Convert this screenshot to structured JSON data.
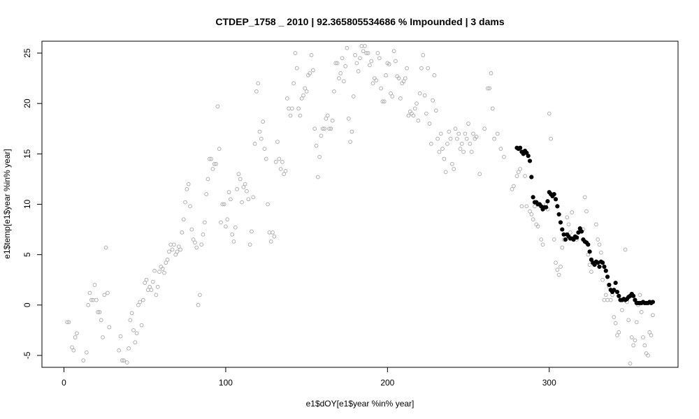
{
  "chart_data": {
    "type": "scatter",
    "title": "CTDEP_1758 _ 2010   |   92.365805534686  % Impounded |  3  dams",
    "xlabel": "e1$dOY[e1$year %in% year]",
    "ylabel": "e1$temp[e1$year %in% year]",
    "xlim": [
      -13.6,
      379.6
    ],
    "ylim": [
      -6.18,
      26.18
    ],
    "xticks": [
      0,
      100,
      200,
      300
    ],
    "yticks": [
      -5,
      0,
      5,
      10,
      15,
      20,
      25
    ],
    "grid": false,
    "series": [
      {
        "color": "#b0b0b0",
        "filled": false,
        "x": [
          2,
          3,
          5,
          6,
          7,
          8,
          12,
          14,
          15,
          16,
          17,
          18,
          19,
          20,
          21,
          22,
          23,
          24,
          25,
          26,
          27,
          28,
          34,
          35,
          36,
          37,
          39,
          40,
          41,
          42,
          43,
          44,
          45,
          46,
          47,
          48,
          49,
          50,
          51,
          52,
          53,
          54,
          55,
          56,
          57,
          58,
          59,
          60,
          61,
          62,
          63,
          64,
          65,
          66,
          67,
          68,
          69,
          70,
          71,
          72,
          73,
          74,
          75,
          76,
          77,
          78,
          79,
          80,
          81,
          82,
          83,
          84,
          85,
          86,
          87,
          88,
          89,
          90,
          91,
          92,
          93,
          94,
          95,
          96,
          97,
          98,
          99,
          100,
          101,
          102,
          103,
          104,
          105,
          106,
          107,
          108,
          109,
          110,
          111,
          112,
          113,
          114,
          115,
          116,
          117,
          118,
          119,
          120,
          121,
          122,
          123,
          124,
          125,
          126,
          127,
          128,
          129,
          130,
          131,
          132,
          133,
          134,
          135,
          136,
          137,
          138,
          139,
          140,
          141,
          142,
          143,
          144,
          145,
          146,
          147,
          148,
          149,
          150,
          151,
          152,
          153,
          154,
          155,
          156,
          157,
          158,
          159,
          160,
          161,
          162,
          163,
          164,
          165,
          166,
          167,
          168,
          169,
          170,
          171,
          172,
          173,
          174,
          175,
          176,
          177,
          178,
          179,
          180,
          181,
          182,
          183,
          184,
          185,
          186,
          187,
          188,
          189,
          190,
          191,
          192,
          193,
          194,
          195,
          196,
          197,
          198,
          199,
          200,
          201,
          202,
          203,
          204,
          205,
          206,
          207,
          208,
          209,
          210,
          211,
          212,
          213,
          214,
          215,
          216,
          217,
          218,
          219,
          220,
          221,
          222,
          223,
          224,
          225,
          226,
          227,
          228,
          229,
          230,
          231,
          232,
          233,
          234,
          235,
          236,
          237,
          238,
          239,
          240,
          241,
          242,
          243,
          244,
          245,
          246,
          247,
          248,
          249,
          250,
          251,
          252,
          253,
          254,
          255,
          257,
          260,
          262,
          263,
          264,
          265,
          266,
          268,
          270,
          272,
          277,
          278,
          280,
          281,
          282,
          283,
          285,
          286,
          288,
          289,
          290,
          291,
          292,
          293,
          295,
          296,
          298,
          299,
          300,
          301,
          303,
          304,
          305,
          306,
          307,
          308,
          309,
          311,
          312,
          313,
          314,
          316,
          317,
          319,
          321,
          322,
          323,
          324,
          325,
          326,
          327,
          329,
          330,
          331,
          332,
          333,
          334,
          335,
          336,
          337,
          338,
          339,
          340,
          341,
          342,
          343,
          345,
          347,
          348,
          349,
          350,
          351,
          352,
          353,
          354,
          355,
          356,
          357,
          358,
          359,
          360,
          361,
          362,
          363,
          364
        ],
        "values": [
          -1.7,
          -1.7,
          -4.2,
          -4.5,
          -3.2,
          -2.8,
          -5.5,
          -4.7,
          0,
          1.2,
          0.5,
          0.5,
          2,
          0.5,
          -0.7,
          -0.7,
          -1.5,
          -3.2,
          1,
          5.7,
          1.2,
          -2.2,
          -4.5,
          -3.1,
          -5.5,
          -5.5,
          -5.7,
          -4.3,
          -1.5,
          -0.8,
          -2.5,
          -3.7,
          -2.8,
          0,
          0.3,
          -2,
          0.5,
          2.2,
          2.5,
          1.5,
          1.8,
          1.5,
          2.3,
          3.4,
          1,
          1.8,
          3.3,
          3.8,
          3.6,
          3.2,
          4.2,
          4.5,
          5.3,
          6,
          5.5,
          6,
          5,
          5.3,
          5.8,
          5.5,
          7.2,
          8.5,
          10.2,
          11.5,
          12,
          9.8,
          7.5,
          6.5,
          6.2,
          5.7,
          0,
          1,
          6,
          7,
          8.2,
          11,
          12.5,
          14.5,
          14.5,
          13.5,
          14,
          14,
          19.7,
          15.5,
          8.2,
          10,
          10,
          7.8,
          8.5,
          11.2,
          10.5,
          7,
          6.3,
          7.7,
          11.5,
          13,
          12.5,
          10.2,
          11.7,
          12,
          11.3,
          10.5,
          6,
          7.3,
          10.7,
          16,
          21.2,
          22,
          17.2,
          16.5,
          18.2,
          15.5,
          14.5,
          10,
          7.2,
          6.3,
          7.2,
          6.8,
          14.2,
          16.2,
          14.5,
          13.5,
          14.2,
          13,
          13.3,
          20.5,
          19.5,
          18.8,
          19.5,
          22,
          25,
          23.5,
          19.5,
          18.8,
          20.5,
          20.8,
          21.5,
          21.2,
          22.8,
          23,
          24.8,
          23.3,
          17.5,
          15.8,
          12.7,
          14.7,
          16.8,
          17.5,
          17.5,
          18.5,
          18.8,
          17.5,
          17.5,
          18.3,
          21.2,
          24,
          24,
          22.5,
          23,
          24.5,
          22.2,
          23.7,
          25.5,
          18.5,
          16.2,
          17.2,
          20.7,
          24.8,
          24,
          23.2,
          24.5,
          25.7,
          25.2,
          25.7,
          25,
          25,
          23.8,
          24.2,
          22,
          22.5,
          22.3,
          25,
          24.5,
          21.5,
          20.2,
          20.2,
          22.8,
          24,
          23.9,
          21,
          20.7,
          25.2,
          24.2,
          22.7,
          22.5,
          20.5,
          22,
          22.2,
          22.5,
          23.5,
          18.8,
          19.2,
          19,
          18.8,
          19.5,
          20,
          18.3,
          21,
          23.5,
          24.8,
          20.8,
          19,
          23.5,
          18,
          16,
          20.3,
          22.8,
          19.3,
          16.5,
          15.2,
          17,
          15.5,
          14.5,
          13.2,
          16,
          17.2,
          16.5,
          14,
          13.5,
          17.5,
          16.5,
          17,
          15.5,
          16,
          15.2,
          17,
          16.5,
          18,
          16,
          15.2,
          17,
          16.5,
          16.7,
          13,
          17.5,
          21.5,
          21.5,
          23,
          19.5,
          16.5,
          17,
          15.5,
          14.7,
          11.5,
          11.8,
          12.8,
          13.2,
          13.5,
          9.8,
          12.8,
          9.8,
          9.3,
          9,
          8.5,
          9.8,
          8,
          7.8,
          6.5,
          6,
          10,
          9.5,
          19,
          16.5,
          6.5,
          4.2,
          3.5,
          3,
          3.8,
          5.7,
          6.5,
          8.7,
          8,
          7.2,
          9.2,
          6.8,
          6.5,
          7.3,
          7.5,
          10.7,
          9.3,
          5,
          4,
          3.3,
          4.2,
          8,
          6.5,
          6,
          5.2,
          2.5,
          0.5,
          1,
          0.5,
          1.8,
          0.5,
          1,
          -1.2,
          -1.8,
          -3,
          -2.7,
          -0.5,
          5.5,
          0.3,
          -1.5,
          -5.8,
          -3.2,
          -4,
          -3.5,
          -1.7,
          0,
          1,
          -0.7,
          -3.2,
          -4,
          -4.8,
          -5,
          -2.7,
          -3,
          -1
        ]
      },
      {
        "color": "#000000",
        "filled": true,
        "x": [
          280,
          281,
          282,
          283,
          284,
          285,
          286,
          287,
          288,
          289,
          290,
          291,
          292,
          293,
          294,
          295,
          296,
          297,
          298,
          299,
          300,
          301,
          302,
          303,
          304,
          305,
          306,
          307,
          308,
          309,
          310,
          311,
          312,
          313,
          314,
          315,
          316,
          317,
          318,
          319,
          320,
          321,
          322,
          323,
          324,
          325,
          326,
          327,
          328,
          329,
          330,
          331,
          332,
          333,
          334,
          335,
          336,
          337,
          338,
          339,
          340,
          341,
          342,
          343,
          344,
          345,
          346,
          347,
          348,
          349,
          350,
          351,
          352,
          353,
          354,
          355,
          356,
          357,
          358,
          359,
          360,
          361,
          362,
          363,
          364
        ],
        "values": [
          15.6,
          15.5,
          15.6,
          15.2,
          15,
          15.3,
          15.1,
          14.8,
          14.3,
          12.7,
          10.7,
          10.2,
          10.2,
          10,
          10,
          9.8,
          9.5,
          9.7,
          9.7,
          10.3,
          11.2,
          11,
          10.8,
          11,
          10.5,
          9.8,
          9,
          8.2,
          7.5,
          7,
          6.5,
          7,
          6.8,
          6.6,
          6.6,
          6.5,
          6.8,
          6.7,
          7.2,
          7.6,
          7.3,
          6.5,
          6.3,
          6.2,
          6,
          5.3,
          4.5,
          4.2,
          4,
          4.3,
          4.2,
          3.8,
          4.3,
          4.2,
          3.8,
          3.4,
          2.8,
          2,
          1.5,
          1.3,
          1.5,
          2.2,
          1.3,
          0.9,
          0.5,
          0.5,
          0.6,
          0.5,
          0.6,
          0.8,
          0.9,
          1.1,
          0.9,
          0.5,
          0.2,
          0.2,
          0.2,
          0.2,
          0.3,
          0.2,
          0.2,
          0.2,
          0.3,
          0.2,
          0.3
        ]
      }
    ]
  }
}
